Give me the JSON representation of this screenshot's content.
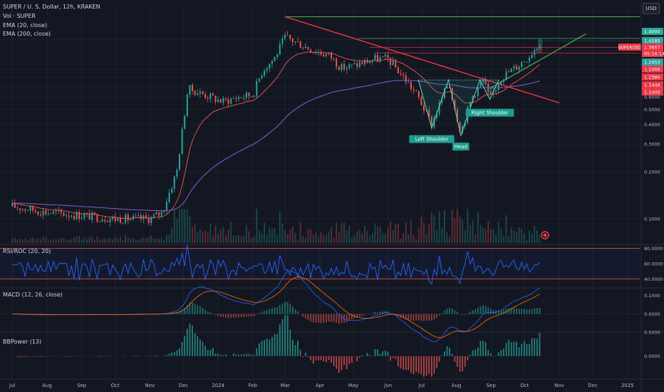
{
  "header": {
    "title": "SUPER / U. S. Dollar, 12h, KRAKEN",
    "vol": "Vol · SUPER",
    "ema20": "EMA (20, close)",
    "ema200": "EMA (200, close)"
  },
  "currency_button": "USD",
  "panes": {
    "rsi": "RSI/ROC (20, 20)",
    "macd": "MACD (12, 26, close)",
    "bbpower": "BBPower (13)"
  },
  "colors": {
    "background": "#131722",
    "up": "#26a69a",
    "down": "#ef5350",
    "ema20": "#ef5350",
    "ema200": "#7e57c2",
    "trendline": "#f23645",
    "support": "#4caf50",
    "pattern_label_bg": "#1b9e8e",
    "symbol_tag": "#f23645"
  },
  "chart_data": [
    {
      "type": "line",
      "name": "price",
      "x_ticks": [
        "Jul",
        "Aug",
        "Sep",
        "Oct",
        "Nov",
        "Dec",
        "2024",
        "Feb",
        "Mar",
        "Apr",
        "May",
        "Jun",
        "Jul",
        "Aug",
        "Sep",
        "Oct",
        "Nov",
        "Dec",
        "2025"
      ],
      "y_scale": "log",
      "y_ticks": [
        "1.4000",
        "0.9000",
        "0.8000",
        "0.7000",
        "0.6000",
        "0.5000",
        "0.4000",
        "0.3000",
        "0.2000",
        "0.1000"
      ],
      "ylim": [
        0.07,
        2.2
      ],
      "price_tags": [
        {
          "label": "1.4000",
          "kind": "level"
        },
        {
          "label": "1.4185",
          "kind": "level"
        },
        {
          "label": "SUPERUSD",
          "kind": "symbol"
        },
        {
          "label": "1.3667",
          "kind": "last"
        },
        {
          "label": "05:16:14",
          "kind": "countdown"
        },
        {
          "label": "1.2453",
          "kind": "level"
        },
        {
          "label": "1.2466",
          "kind": "level"
        },
        {
          "label": "1.2380",
          "kind": "level"
        },
        {
          "label": "1.1448",
          "kind": "level"
        },
        {
          "label": "1.1400",
          "kind": "level"
        }
      ],
      "patterns": [
        {
          "label": "Left Shoulder",
          "x": "2024-07-10",
          "y": 0.38
        },
        {
          "label": "Head",
          "x": "2024-08-05",
          "y": 0.34
        },
        {
          "label": "Right Shoulder",
          "x": "2024-08-31",
          "y": 0.56
        }
      ],
      "anchors": [
        {
          "x": "2023-07-01",
          "y": 0.12
        },
        {
          "x": "2023-08-01",
          "y": 0.11
        },
        {
          "x": "2023-09-01",
          "y": 0.105
        },
        {
          "x": "2023-10-01",
          "y": 0.1
        },
        {
          "x": "2023-11-01",
          "y": 0.1
        },
        {
          "x": "2023-11-12",
          "y": 0.11
        },
        {
          "x": "2023-11-25",
          "y": 0.2
        },
        {
          "x": "2023-12-05",
          "y": 0.68
        },
        {
          "x": "2023-12-20",
          "y": 0.62
        },
        {
          "x": "2024-01-05",
          "y": 0.56
        },
        {
          "x": "2024-01-20",
          "y": 0.6
        },
        {
          "x": "2024-02-01",
          "y": 0.62
        },
        {
          "x": "2024-02-10",
          "y": 0.9
        },
        {
          "x": "2024-02-20",
          "y": 1.05
        },
        {
          "x": "2024-03-01",
          "y": 1.45
        },
        {
          "x": "2024-03-10",
          "y": 1.35
        },
        {
          "x": "2024-03-25",
          "y": 1.2
        },
        {
          "x": "2024-04-10",
          "y": 1.1
        },
        {
          "x": "2024-04-20",
          "y": 0.92
        },
        {
          "x": "2024-05-01",
          "y": 0.95
        },
        {
          "x": "2024-05-20",
          "y": 1.05
        },
        {
          "x": "2024-06-01",
          "y": 1.05
        },
        {
          "x": "2024-06-15",
          "y": 0.8
        },
        {
          "x": "2024-06-28",
          "y": 0.6
        },
        {
          "x": "2024-07-10",
          "y": 0.4
        },
        {
          "x": "2024-07-25",
          "y": 0.75
        },
        {
          "x": "2024-08-05",
          "y": 0.36
        },
        {
          "x": "2024-08-15",
          "y": 0.6
        },
        {
          "x": "2024-08-25",
          "y": 0.77
        },
        {
          "x": "2024-08-31",
          "y": 0.58
        },
        {
          "x": "2024-09-10",
          "y": 0.8
        },
        {
          "x": "2024-09-25",
          "y": 0.95
        },
        {
          "x": "2024-10-05",
          "y": 1.1
        },
        {
          "x": "2024-10-13",
          "y": 1.3
        },
        {
          "x": "2024-10-16",
          "y": 1.37
        }
      ]
    },
    {
      "type": "line",
      "name": "RSI/ROC (20, 20)",
      "y_ticks": [
        "80.0000",
        "60.0000",
        "40.0000"
      ],
      "ylim": [
        30,
        85
      ]
    },
    {
      "type": "bar",
      "name": "MACD (12, 26, close)",
      "y_ticks": [
        "0.1000",
        "0.0000"
      ],
      "ylim": [
        -0.09,
        0.14
      ]
    },
    {
      "type": "bar",
      "name": "BBPower (13)",
      "y_ticks": [
        "0.5000",
        "0.0000"
      ],
      "ylim": [
        -0.45,
        0.5
      ]
    }
  ]
}
